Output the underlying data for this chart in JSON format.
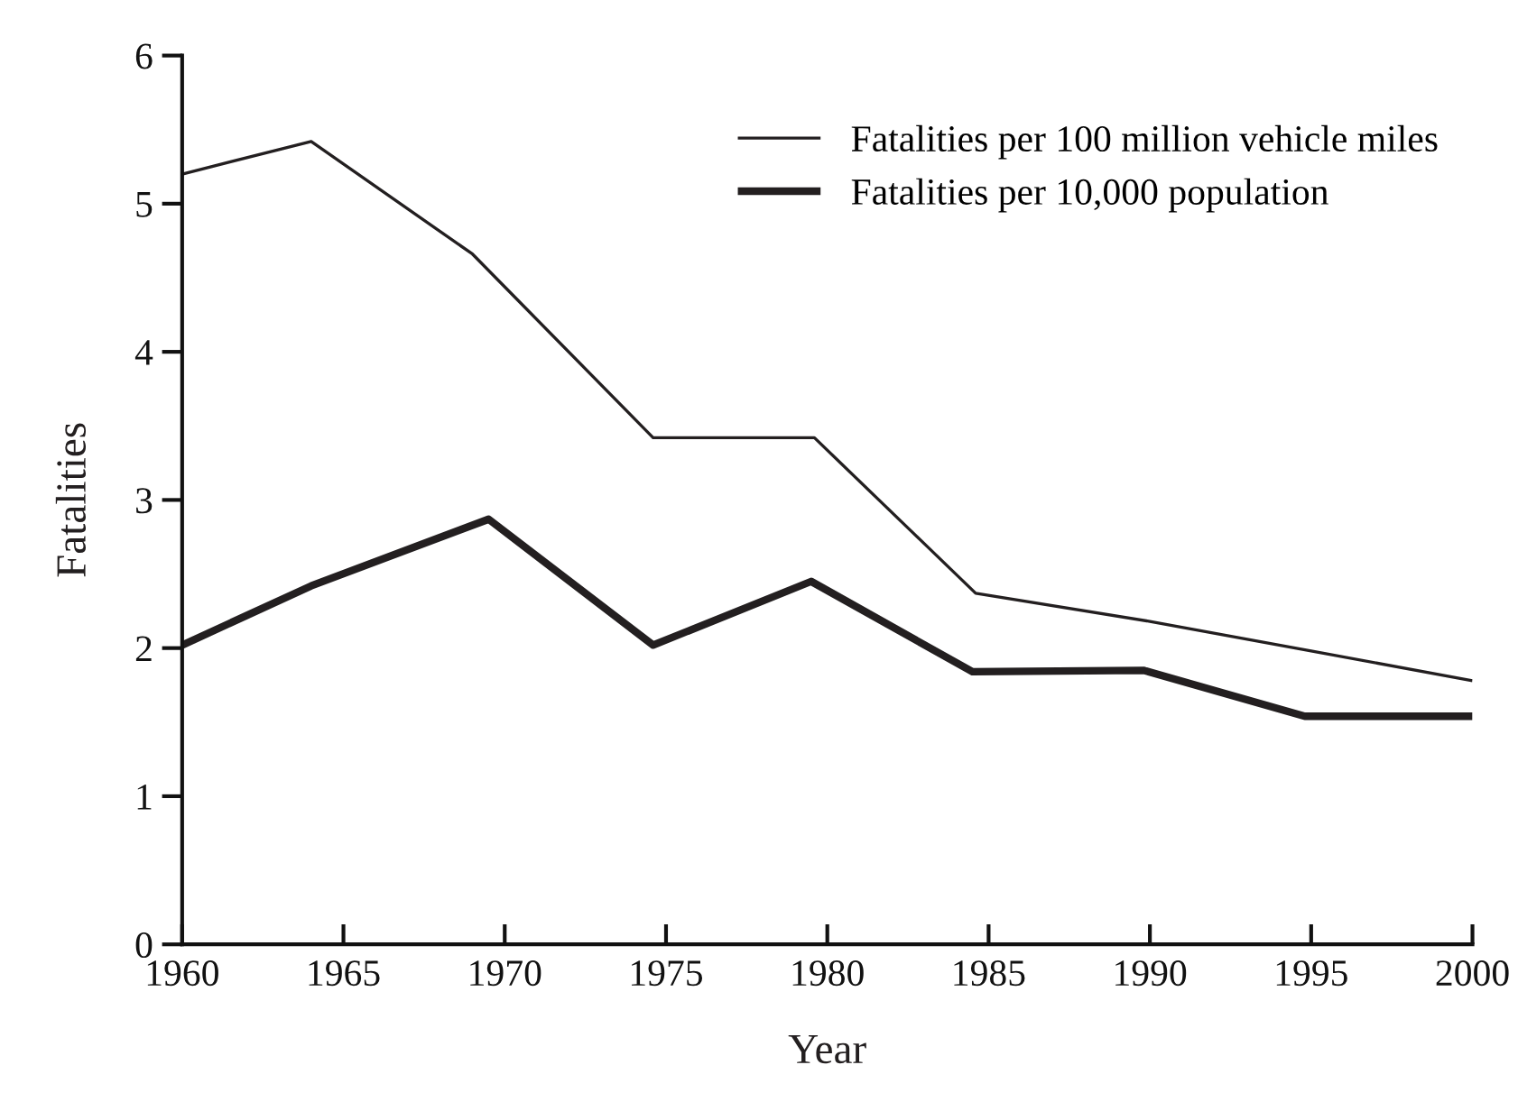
{
  "chart_data": {
    "type": "line",
    "xlabel": "Year",
    "ylabel": "Fatalities",
    "xlim": [
      1960,
      2000
    ],
    "xticks": [
      1960,
      1965,
      1970,
      1975,
      1980,
      1985,
      1990,
      1995,
      2000
    ],
    "ylim": [
      0,
      6
    ],
    "yticks": [
      0,
      1,
      2,
      3,
      4,
      5,
      6
    ],
    "grid": false,
    "legend": "top right",
    "series": [
      {
        "name": "Fatalities per 100 million vehicle miles",
        "color": "#231f20",
        "x": [
          1960,
          1964,
          1969,
          1974.6,
          1979.6,
          1984.6,
          1990,
          1995,
          2000
        ],
        "values": [
          5.2,
          5.42,
          4.66,
          3.42,
          3.42,
          2.37,
          2.18,
          1.98,
          1.78
        ]
      },
      {
        "name": "Fatalities per 10,000 population",
        "color": "#231f20",
        "x": [
          1960,
          1964,
          1969.5,
          1974.6,
          1979.5,
          1984.5,
          1989.8,
          1994.8,
          2000
        ],
        "values": [
          2.02,
          2.42,
          2.87,
          2.02,
          2.45,
          1.84,
          1.85,
          1.54,
          1.54
        ]
      }
    ]
  }
}
